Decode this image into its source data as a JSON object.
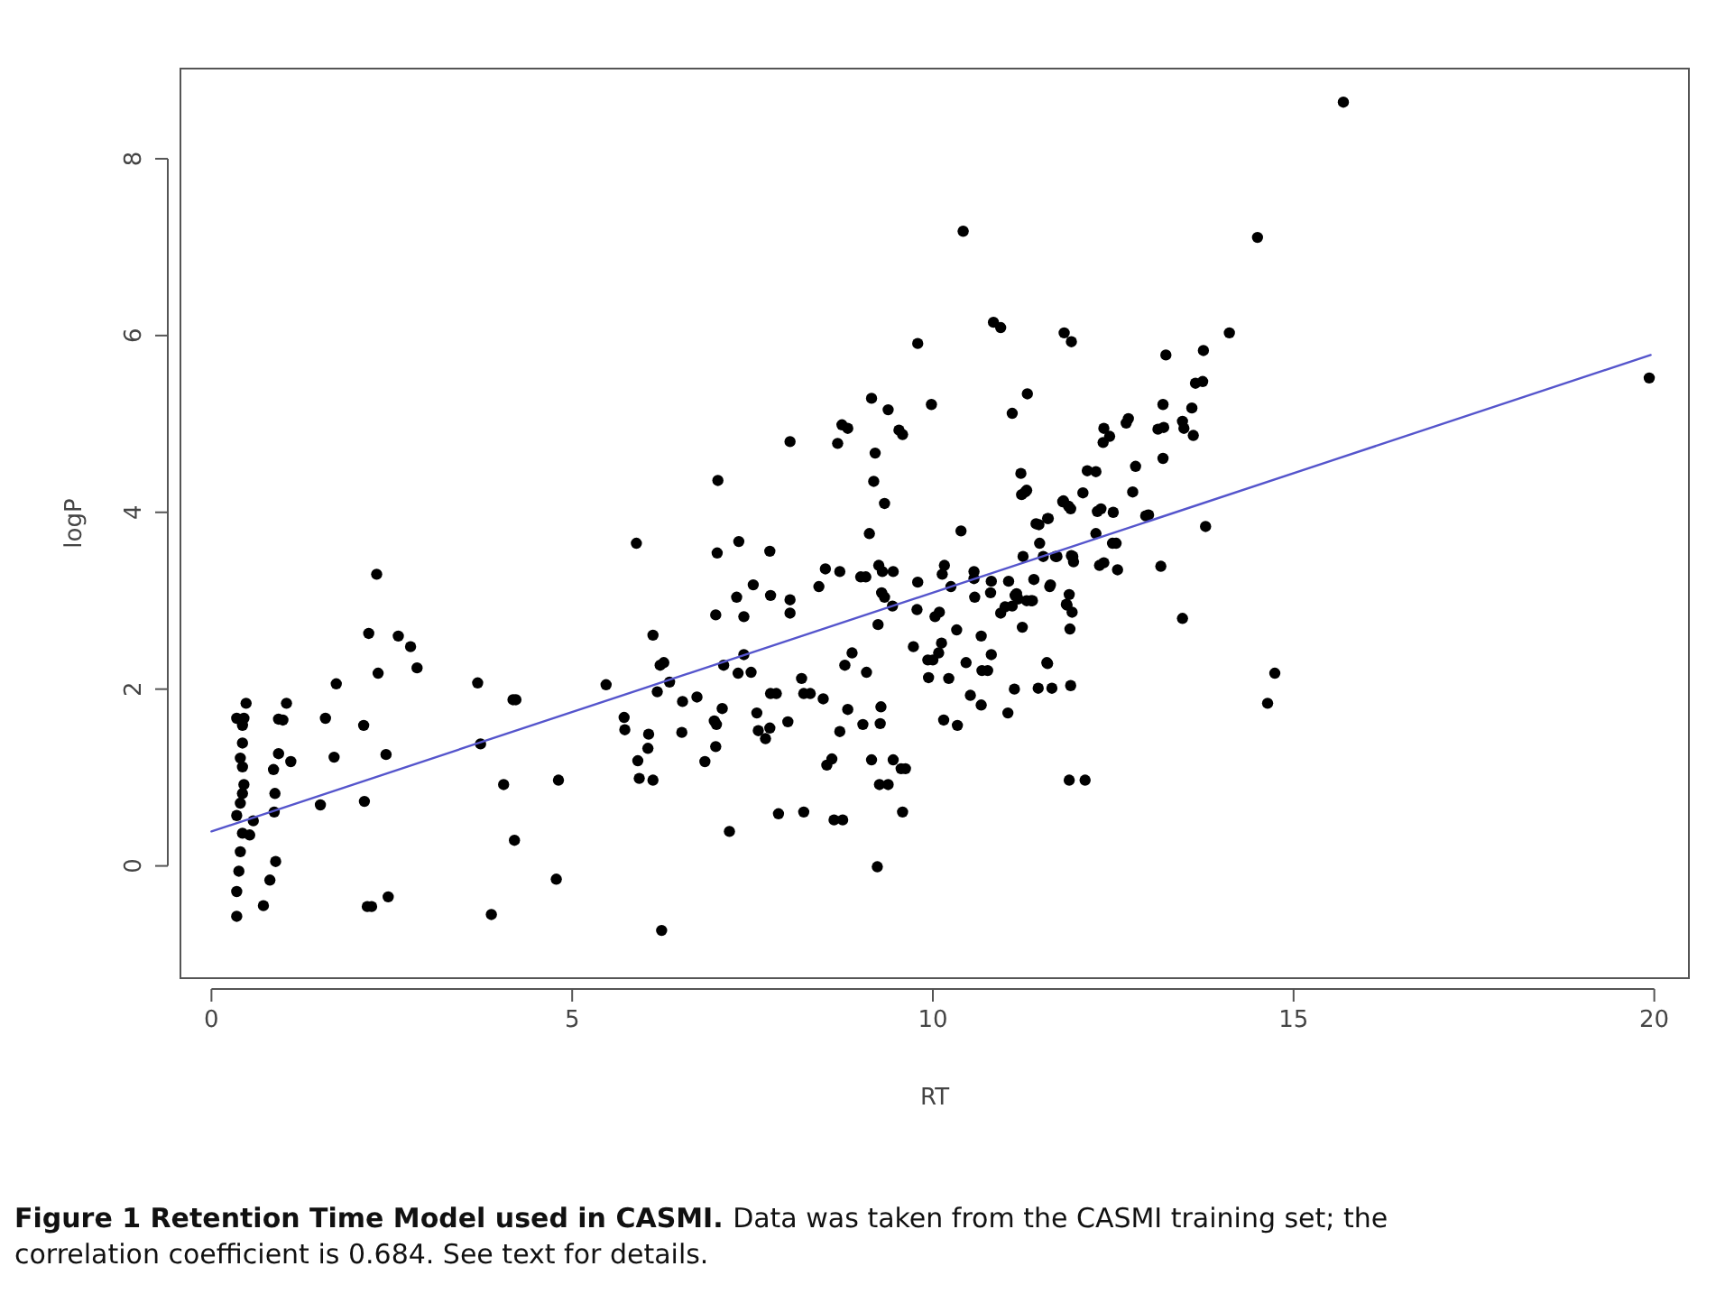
{
  "chart_data": {
    "type": "scatter",
    "title": "Figure 1 Retention Time Model used in CASMI.",
    "annotations": [
      "Data was taken from the CASMI training set; the correlation coefficient is 0.684. See text for details."
    ],
    "xlabel": "RT",
    "ylabel": "logP",
    "xlim": [
      -0.43,
      20.48
    ],
    "ylim": [
      -1.27,
      9.02
    ],
    "xticks": [
      0,
      5,
      10,
      15,
      20
    ],
    "yticks": [
      0,
      2,
      4,
      6,
      8
    ],
    "grid": false,
    "series": [
      {
        "color": "#000000",
        "marker": "circle",
        "x": [
          0.35,
          0.35,
          0.38,
          0.4,
          0.43,
          0.35,
          0.4,
          0.43,
          0.45,
          0.43,
          0.4,
          0.43,
          0.43,
          0.35,
          0.45,
          0.48,
          0.53,
          0.58,
          0.72,
          0.81,
          0.89,
          0.87,
          0.88,
          0.86,
          0.93,
          1.1,
          0.93,
          0.99,
          1.04,
          1.51,
          1.58,
          1.73,
          1.7,
          2.12,
          2.11,
          2.18,
          2.29,
          2.31,
          2.42,
          2.59,
          2.76,
          2.85,
          2.16,
          2.22,
          2.45,
          3.69,
          3.73,
          4.05,
          4.18,
          4.22,
          4.2,
          3.88,
          4.78,
          4.81,
          5.47,
          5.72,
          5.73,
          5.89,
          5.91,
          5.93,
          6.12,
          6.06,
          6.05,
          6.12,
          6.22,
          6.27,
          6.35,
          6.18,
          6.24,
          6.53,
          6.52,
          6.73,
          6.84,
          6.99,
          6.97,
          7.0,
          7.08,
          7.1,
          7.18,
          6.99,
          7.01,
          7.02,
          7.3,
          7.38,
          7.48,
          7.28,
          7.38,
          7.31,
          7.51,
          7.56,
          7.58,
          7.68,
          7.74,
          7.75,
          7.83,
          7.74,
          7.75,
          7.86,
          7.99,
          8.02,
          8.02,
          8.02,
          8.18,
          8.21,
          8.21,
          8.3,
          8.42,
          8.51,
          8.48,
          8.53,
          8.6,
          8.71,
          8.71,
          8.63,
          8.75,
          8.68,
          8.74,
          8.82,
          8.78,
          8.88,
          8.82,
          9.0,
          9.07,
          9.08,
          9.03,
          9.12,
          9.15,
          9.2,
          9.18,
          9.33,
          9.38,
          9.53,
          9.58,
          9.25,
          9.3,
          9.45,
          9.29,
          9.33,
          9.44,
          9.24,
          9.28,
          9.27,
          9.15,
          9.45,
          9.26,
          9.38,
          9.56,
          9.62,
          9.58,
          9.23,
          9.79,
          9.98,
          9.79,
          9.73,
          9.78,
          9.93,
          10.0,
          9.94,
          10.03,
          10.09,
          10.08,
          10.12,
          10.15,
          10.34,
          10.22,
          10.25,
          10.13,
          10.16,
          10.33,
          10.39,
          10.46,
          10.52,
          10.57,
          10.57,
          10.58,
          10.67,
          10.67,
          10.68,
          10.76,
          10.81,
          10.81,
          10.8,
          11.04,
          11.05,
          11.13,
          10.94,
          11.0,
          11.1,
          11.16,
          11.18,
          11.24,
          11.3,
          11.36,
          11.25,
          11.4,
          11.47,
          11.6,
          11.48,
          11.62,
          11.53,
          11.7,
          11.58,
          11.46,
          11.65,
          11.22,
          11.23,
          11.3,
          11.1,
          11.31,
          10.84,
          10.94,
          11.82,
          11.92,
          11.81,
          11.91,
          11.89,
          11.86,
          11.93,
          11.9,
          11.94,
          11.91,
          11.89,
          10.42,
          15.69,
          14.5,
          14.11,
          13.75,
          13.23,
          19.93,
          14.74,
          14.64,
          13.46,
          13.78,
          13.16,
          12.11,
          13.64,
          13.74,
          13.59,
          13.19,
          13.46,
          13.48,
          13.61,
          13.12,
          13.2,
          13.19,
          12.68,
          12.71,
          12.37,
          12.36,
          12.45,
          12.81,
          12.77,
          12.14,
          12.26,
          12.08,
          11.28,
          11.8,
          11.88,
          12.28,
          12.33,
          12.5,
          12.95,
          12.99,
          11.59,
          11.43,
          12.26,
          12.49,
          12.54,
          11.72,
          11.92,
          11.95,
          12.31,
          12.37,
          12.56,
          11.63,
          11.14,
          11.38,
          11.85,
          11.59
        ],
        "values": [
          -0.57,
          -0.29,
          -0.06,
          0.16,
          0.37,
          0.57,
          0.71,
          0.82,
          0.92,
          1.12,
          1.22,
          1.39,
          1.59,
          1.67,
          1.67,
          1.84,
          0.35,
          0.51,
          -0.45,
          -0.16,
          0.05,
          0.61,
          0.82,
          1.09,
          1.27,
          1.18,
          1.66,
          1.65,
          1.84,
          0.69,
          1.67,
          2.06,
          1.23,
          0.73,
          1.59,
          2.63,
          3.3,
          2.18,
          1.26,
          2.6,
          2.48,
          2.24,
          -0.46,
          -0.46,
          -0.35,
          2.07,
          1.38,
          0.92,
          1.88,
          1.88,
          0.29,
          -0.55,
          -0.15,
          0.97,
          2.05,
          1.68,
          1.54,
          3.65,
          1.19,
          0.99,
          0.97,
          1.49,
          1.33,
          2.61,
          2.27,
          2.3,
          2.08,
          1.97,
          -0.73,
          1.86,
          1.51,
          1.91,
          1.18,
          1.35,
          1.64,
          1.6,
          1.78,
          2.27,
          0.39,
          2.84,
          3.54,
          4.36,
          2.18,
          2.39,
          2.19,
          3.04,
          2.82,
          3.67,
          3.18,
          1.73,
          1.53,
          1.44,
          1.56,
          1.95,
          1.95,
          3.56,
          3.06,
          0.59,
          1.63,
          3.01,
          2.86,
          4.8,
          2.12,
          0.61,
          1.95,
          1.95,
          3.16,
          3.36,
          1.89,
          1.14,
          1.21,
          1.52,
          3.33,
          0.52,
          0.52,
          4.78,
          4.99,
          4.95,
          2.27,
          2.41,
          1.77,
          3.27,
          3.27,
          2.19,
          1.6,
          3.76,
          5.29,
          4.67,
          4.35,
          4.1,
          5.16,
          4.93,
          4.88,
          3.4,
          3.33,
          3.33,
          3.09,
          3.04,
          2.94,
          2.73,
          1.8,
          1.61,
          1.2,
          1.2,
          0.92,
          0.92,
          1.1,
          1.1,
          0.61,
          -0.01,
          5.91,
          5.22,
          3.21,
          2.48,
          2.9,
          2.33,
          2.33,
          2.13,
          2.82,
          2.87,
          2.41,
          2.52,
          1.65,
          1.59,
          2.12,
          3.16,
          3.3,
          3.4,
          2.67,
          3.79,
          2.3,
          1.93,
          3.33,
          3.25,
          3.04,
          1.82,
          2.6,
          2.21,
          2.21,
          2.39,
          3.22,
          3.09,
          1.73,
          3.22,
          2.0,
          2.86,
          2.93,
          2.94,
          3.08,
          3.02,
          2.7,
          3.0,
          3.0,
          3.5,
          3.24,
          3.86,
          3.93,
          3.65,
          3.16,
          3.5,
          3.5,
          2.3,
          2.01,
          2.01,
          4.44,
          4.2,
          4.25,
          5.12,
          5.34,
          6.15,
          6.09,
          6.03,
          5.93,
          4.13,
          4.04,
          3.07,
          2.95,
          2.87,
          2.68,
          3.5,
          2.04,
          0.97,
          7.18,
          8.64,
          7.11,
          6.03,
          5.83,
          5.78,
          5.52,
          2.18,
          1.84,
          2.8,
          3.84,
          3.39,
          0.97,
          5.46,
          5.48,
          5.18,
          5.22,
          5.03,
          4.95,
          4.87,
          4.94,
          4.96,
          4.61,
          5.01,
          5.06,
          4.95,
          4.79,
          4.86,
          4.52,
          4.23,
          4.47,
          4.46,
          4.22,
          4.23,
          4.12,
          4.07,
          4.01,
          4.04,
          4.0,
          3.96,
          3.97,
          3.93,
          3.87,
          3.76,
          3.65,
          3.65,
          3.5,
          3.51,
          3.44,
          3.4,
          3.43,
          3.35,
          3.18,
          3.06,
          3.0,
          2.96,
          2.29
        ]
      },
      {
        "type": "line",
        "color": "#5555cc",
        "marker": "none",
        "line_style": "solid",
        "x": [
          0,
          19.95
        ],
        "values": [
          0.39,
          5.78
        ]
      }
    ]
  }
}
